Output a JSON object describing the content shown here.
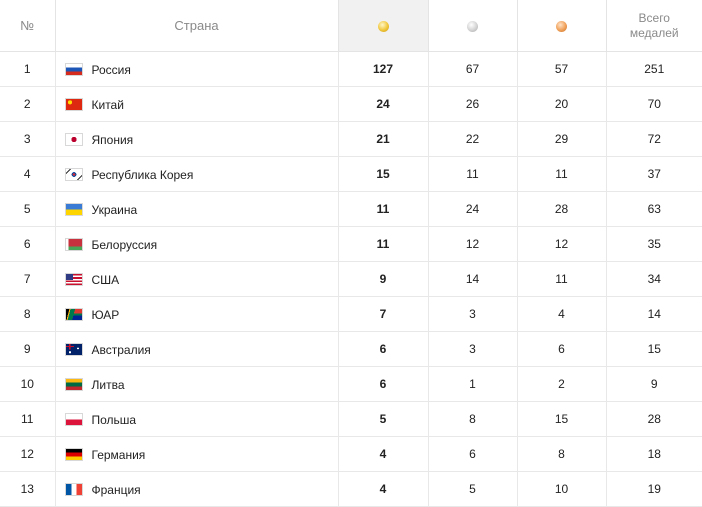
{
  "header": {
    "num_label": "№",
    "country_label": "Страна",
    "total_label_line1": "Всего",
    "total_label_line2": "медалей"
  },
  "rows": [
    {
      "rank": "1",
      "country": "Россия",
      "flag": "russia-flag-icon",
      "gold": "127",
      "silver": "67",
      "bronze": "57",
      "total": "251"
    },
    {
      "rank": "2",
      "country": "Китай",
      "flag": "china-flag-icon",
      "gold": "24",
      "silver": "26",
      "bronze": "20",
      "total": "70"
    },
    {
      "rank": "3",
      "country": "Япония",
      "flag": "japan-flag-icon",
      "gold": "21",
      "silver": "22",
      "bronze": "29",
      "total": "72"
    },
    {
      "rank": "4",
      "country": "Республика Корея",
      "flag": "south-korea-flag-icon",
      "gold": "15",
      "silver": "11",
      "bronze": "11",
      "total": "37"
    },
    {
      "rank": "5",
      "country": "Украина",
      "flag": "ukraine-flag-icon",
      "gold": "11",
      "silver": "24",
      "bronze": "28",
      "total": "63"
    },
    {
      "rank": "6",
      "country": "Белоруссия",
      "flag": "belarus-flag-icon",
      "gold": "11",
      "silver": "12",
      "bronze": "12",
      "total": "35"
    },
    {
      "rank": "7",
      "country": "США",
      "flag": "usa-flag-icon",
      "gold": "9",
      "silver": "14",
      "bronze": "11",
      "total": "34"
    },
    {
      "rank": "8",
      "country": "ЮАР",
      "flag": "south-africa-flag-icon",
      "gold": "7",
      "silver": "3",
      "bronze": "4",
      "total": "14"
    },
    {
      "rank": "9",
      "country": "Австралия",
      "flag": "australia-flag-icon",
      "gold": "6",
      "silver": "3",
      "bronze": "6",
      "total": "15"
    },
    {
      "rank": "10",
      "country": "Литва",
      "flag": "lithuania-flag-icon",
      "gold": "6",
      "silver": "1",
      "bronze": "2",
      "total": "9"
    },
    {
      "rank": "11",
      "country": "Польша",
      "flag": "poland-flag-icon",
      "gold": "5",
      "silver": "8",
      "bronze": "15",
      "total": "28"
    },
    {
      "rank": "12",
      "country": "Германия",
      "flag": "germany-flag-icon",
      "gold": "4",
      "silver": "6",
      "bronze": "8",
      "total": "18"
    },
    {
      "rank": "13",
      "country": "Франция",
      "flag": "france-flag-icon",
      "gold": "4",
      "silver": "5",
      "bronze": "10",
      "total": "19"
    }
  ],
  "colors": {
    "gold_medal": "#f0c63a",
    "silver_medal": "#d3d3d3",
    "bronze_medal": "#f0a058",
    "gold_header_bg": "#f1f1f1",
    "grid_line": "#e8e8e8"
  }
}
